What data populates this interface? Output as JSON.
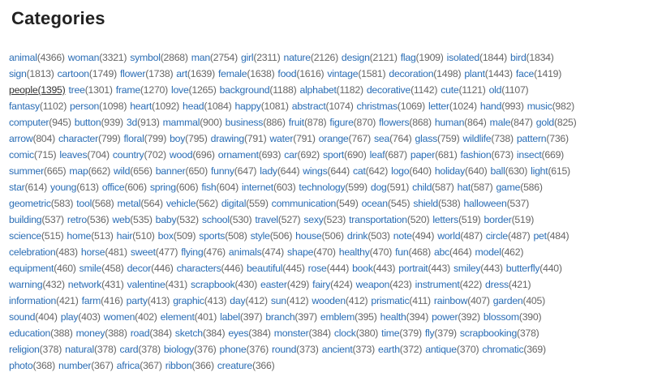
{
  "title": "Categories",
  "colors": {
    "link": "#2a6db5",
    "count": "#666666",
    "hovered_link": "#333333"
  },
  "hovered": "people",
  "rows": [
    [
      [
        "animal",
        "(4366)"
      ],
      [
        "woman",
        "(3321)"
      ],
      [
        "symbol",
        "(2868)"
      ],
      [
        "man",
        "(2754)"
      ],
      [
        "girl",
        "(2311)"
      ],
      [
        "nature",
        "(2126)"
      ],
      [
        "design",
        "(2121)"
      ],
      [
        "flag",
        "(1909)"
      ],
      [
        "isolated",
        "(1844)"
      ],
      [
        "bird",
        "(1834)"
      ]
    ],
    [
      [
        "sign",
        "(1813)"
      ],
      [
        "cartoon",
        "(1749)"
      ],
      [
        "flower",
        "(1738)"
      ],
      [
        "art",
        "(1639)"
      ],
      [
        "female",
        "(1638)"
      ],
      [
        "food",
        "(1616)"
      ],
      [
        "vintage",
        "(1581)"
      ],
      [
        "decoration",
        "(1498)"
      ],
      [
        "plant",
        "(1443)"
      ],
      [
        "face",
        "(1419)"
      ]
    ],
    [
      [
        "people",
        "(1395)"
      ],
      [
        "tree",
        "(1301)"
      ],
      [
        "frame",
        "(1270)"
      ],
      [
        "love",
        "(1265)"
      ],
      [
        "background",
        "(1188)"
      ],
      [
        "alphabet",
        "(1182)"
      ],
      [
        "decorative",
        "(1142)"
      ],
      [
        "cute",
        "(1121)"
      ],
      [
        "old",
        "(1107)"
      ]
    ],
    [
      [
        "fantasy",
        "(1102)"
      ],
      [
        "person",
        "(1098)"
      ],
      [
        "heart",
        "(1092)"
      ],
      [
        "head",
        "(1084)"
      ],
      [
        "happy",
        "(1081)"
      ],
      [
        "abstract",
        "(1074)"
      ],
      [
        "christmas",
        "(1069)"
      ],
      [
        "letter",
        "(1024)"
      ],
      [
        "hand",
        "(993)"
      ],
      [
        "music",
        "(982)"
      ]
    ],
    [
      [
        "computer",
        "(945)"
      ],
      [
        "button",
        "(939)"
      ],
      [
        "3d",
        "(913)"
      ],
      [
        "mammal",
        "(900)"
      ],
      [
        "business",
        "(886)"
      ],
      [
        "fruit",
        "(878)"
      ],
      [
        "figure",
        "(870)"
      ],
      [
        "flowers",
        "(868)"
      ],
      [
        "human",
        "(864)"
      ],
      [
        "male",
        "(847)"
      ],
      [
        "gold",
        "(825)"
      ]
    ],
    [
      [
        "arrow",
        "(804)"
      ],
      [
        "character",
        "(799)"
      ],
      [
        "floral",
        "(799)"
      ],
      [
        "boy",
        "(795)"
      ],
      [
        "drawing",
        "(791)"
      ],
      [
        "water",
        "(791)"
      ],
      [
        "orange",
        "(767)"
      ],
      [
        "sea",
        "(764)"
      ],
      [
        "glass",
        "(759)"
      ],
      [
        "wildlife",
        "(738)"
      ],
      [
        "pattern",
        "(736)"
      ]
    ],
    [
      [
        "comic",
        "(715)"
      ],
      [
        "leaves",
        "(704)"
      ],
      [
        "country",
        "(702)"
      ],
      [
        "wood",
        "(696)"
      ],
      [
        "ornament",
        "(693)"
      ],
      [
        "car",
        "(692)"
      ],
      [
        "sport",
        "(690)"
      ],
      [
        "leaf",
        "(687)"
      ],
      [
        "paper",
        "(681)"
      ],
      [
        "fashion",
        "(673)"
      ],
      [
        "insect",
        "(669)"
      ]
    ],
    [
      [
        "summer",
        "(665)"
      ],
      [
        "map",
        "(662)"
      ],
      [
        "wild",
        "(656)"
      ],
      [
        "banner",
        "(650)"
      ],
      [
        "funny",
        "(647)"
      ],
      [
        "lady",
        "(644)"
      ],
      [
        "wings",
        "(644)"
      ],
      [
        "cat",
        "(642)"
      ],
      [
        "logo",
        "(640)"
      ],
      [
        "holiday",
        "(640)"
      ],
      [
        "ball",
        "(630)"
      ],
      [
        "light",
        "(615)"
      ]
    ],
    [
      [
        "star",
        "(614)"
      ],
      [
        "young",
        "(613)"
      ],
      [
        "office",
        "(606)"
      ],
      [
        "spring",
        "(606)"
      ],
      [
        "fish",
        "(604)"
      ],
      [
        "internet",
        "(603)"
      ],
      [
        "technology",
        "(599)"
      ],
      [
        "dog",
        "(591)"
      ],
      [
        "child",
        "(587)"
      ],
      [
        "hat",
        "(587)"
      ],
      [
        "game",
        "(586)"
      ]
    ],
    [
      [
        "geometric",
        "(583)"
      ],
      [
        "tool",
        "(568)"
      ],
      [
        "metal",
        "(564)"
      ],
      [
        "vehicle",
        "(562)"
      ],
      [
        "digital",
        "(559)"
      ],
      [
        "communication",
        "(549)"
      ],
      [
        "ocean",
        "(545)"
      ],
      [
        "shield",
        "(538)"
      ],
      [
        "halloween",
        "(537)"
      ]
    ],
    [
      [
        "building",
        "(537)"
      ],
      [
        "retro",
        "(536)"
      ],
      [
        "web",
        "(535)"
      ],
      [
        "baby",
        "(532)"
      ],
      [
        "school",
        "(530)"
      ],
      [
        "travel",
        "(527)"
      ],
      [
        "sexy",
        "(523)"
      ],
      [
        "transportation",
        "(520)"
      ],
      [
        "letters",
        "(519)"
      ],
      [
        "border",
        "(519)"
      ]
    ],
    [
      [
        "science",
        "(515)"
      ],
      [
        "home",
        "(513)"
      ],
      [
        "hair",
        "(510)"
      ],
      [
        "box",
        "(509)"
      ],
      [
        "sports",
        "(508)"
      ],
      [
        "style",
        "(506)"
      ],
      [
        "house",
        "(506)"
      ],
      [
        "drink",
        "(503)"
      ],
      [
        "note",
        "(494)"
      ],
      [
        "world",
        "(487)"
      ],
      [
        "circle",
        "(487)"
      ],
      [
        "pet",
        "(484)"
      ]
    ],
    [
      [
        "celebration",
        "(483)"
      ],
      [
        "horse",
        "(481)"
      ],
      [
        "sweet",
        "(477)"
      ],
      [
        "flying",
        "(476)"
      ],
      [
        "animals",
        "(474)"
      ],
      [
        "shape",
        "(470)"
      ],
      [
        "healthy",
        "(470)"
      ],
      [
        "fun",
        "(468)"
      ],
      [
        "abc",
        "(464)"
      ],
      [
        "model",
        "(462)"
      ]
    ],
    [
      [
        "equipment",
        "(460)"
      ],
      [
        "smile",
        "(458)"
      ],
      [
        "decor",
        "(446)"
      ],
      [
        "characters",
        "(446)"
      ],
      [
        "beautiful",
        "(445)"
      ],
      [
        "rose",
        "(444)"
      ],
      [
        "book",
        "(443)"
      ],
      [
        "portrait",
        "(443)"
      ],
      [
        "smiley",
        "(443)"
      ],
      [
        "butterfly",
        "(440)"
      ]
    ],
    [
      [
        "warning",
        "(432)"
      ],
      [
        "network",
        "(431)"
      ],
      [
        "valentine",
        "(431)"
      ],
      [
        "scrapbook",
        "(430)"
      ],
      [
        "easter",
        "(429)"
      ],
      [
        "fairy",
        "(424)"
      ],
      [
        "weapon",
        "(423)"
      ],
      [
        "instrument",
        "(422)"
      ],
      [
        "dress",
        "(421)"
      ]
    ],
    [
      [
        "information",
        "(421)"
      ],
      [
        "farm",
        "(416)"
      ],
      [
        "party",
        "(413)"
      ],
      [
        "graphic",
        "(413)"
      ],
      [
        "day",
        "(412)"
      ],
      [
        "sun",
        "(412)"
      ],
      [
        "wooden",
        "(412)"
      ],
      [
        "prismatic",
        "(411)"
      ],
      [
        "rainbow",
        "(407)"
      ],
      [
        "garden",
        "(405)"
      ]
    ],
    [
      [
        "sound",
        "(404)"
      ],
      [
        "play",
        "(403)"
      ],
      [
        "women",
        "(402)"
      ],
      [
        "element",
        "(401)"
      ],
      [
        "label",
        "(397)"
      ],
      [
        "branch",
        "(397)"
      ],
      [
        "emblem",
        "(395)"
      ],
      [
        "health",
        "(394)"
      ],
      [
        "power",
        "(392)"
      ],
      [
        "blossom",
        "(390)"
      ]
    ],
    [
      [
        "education",
        "(388)"
      ],
      [
        "money",
        "(388)"
      ],
      [
        "road",
        "(384)"
      ],
      [
        "sketch",
        "(384)"
      ],
      [
        "eyes",
        "(384)"
      ],
      [
        "monster",
        "(384)"
      ],
      [
        "clock",
        "(380)"
      ],
      [
        "time",
        "(379)"
      ],
      [
        "fly",
        "(379)"
      ],
      [
        "scrapbooking",
        "(378)"
      ]
    ],
    [
      [
        "religion",
        "(378)"
      ],
      [
        "natural",
        "(378)"
      ],
      [
        "card",
        "(378)"
      ],
      [
        "biology",
        "(376)"
      ],
      [
        "phone",
        "(376)"
      ],
      [
        "round",
        "(373)"
      ],
      [
        "ancient",
        "(373)"
      ],
      [
        "earth",
        "(372)"
      ],
      [
        "antique",
        "(370)"
      ],
      [
        "chromatic",
        "(369)"
      ]
    ],
    [
      [
        "photo",
        "(368)"
      ],
      [
        "number",
        "(367)"
      ],
      [
        "africa",
        "(367)"
      ],
      [
        "ribbon",
        "(366)"
      ],
      [
        "creature",
        "(366)"
      ]
    ]
  ]
}
